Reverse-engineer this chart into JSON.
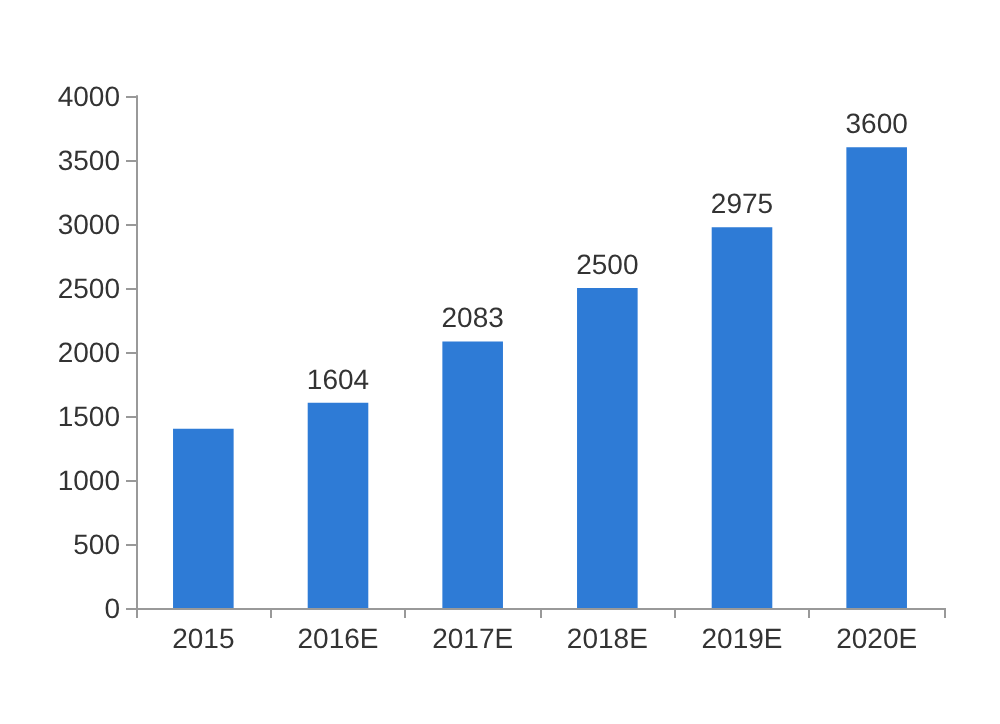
{
  "chart_data": {
    "type": "bar",
    "categories": [
      "2015",
      "2016E",
      "2017E",
      "2018E",
      "2019E",
      "2020E"
    ],
    "values": [
      1400,
      1604,
      2083,
      2500,
      2975,
      3600
    ],
    "value_labels": [
      null,
      "1604",
      "2083",
      "2500",
      "2975",
      "3600"
    ],
    "color": "#2e7bd6",
    "ylim": [
      0,
      4000
    ],
    "yticks": [
      0,
      500,
      1000,
      1500,
      2000,
      2500,
      3000,
      3500,
      4000
    ],
    "grid": false
  }
}
